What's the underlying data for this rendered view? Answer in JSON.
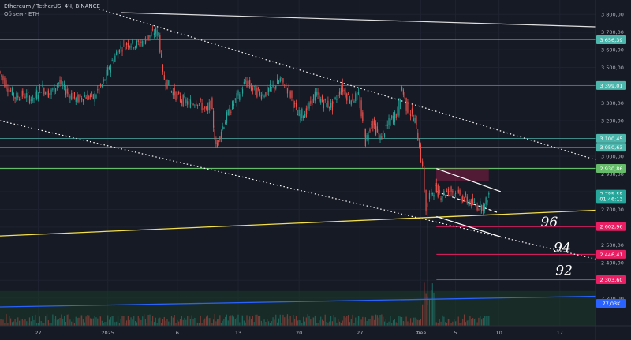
{
  "header": {
    "title": "Ethereum / TetherUS, 4Ч, BINANCE",
    "volume_label": "Объем · ETH"
  },
  "colors": {
    "bg": "#161a25",
    "grid": "#1f2330",
    "axis_text": "#b2b5be",
    "up": "#26a69a",
    "down": "#ef5350",
    "teal_level": "#4db6ac",
    "green_level": "#66bb6a",
    "pink_level": "#e91e63",
    "yellow_line": "#f4e04d",
    "blue_line": "#2962ff",
    "white_line": "#e0e0e0"
  },
  "chart_data": {
    "type": "candlestick",
    "symbol": "ETHUSDT",
    "timeframe": "4Ч",
    "ylim": [
      2150,
      3850
    ],
    "y_ticks": [
      "3 800,00",
      "3 700,00",
      "3 600,00",
      "3 500,00",
      "3 400,00",
      "3 300,00",
      "3 200,00",
      "3 100,00",
      "3 000,00",
      "2 900,00",
      "2 800,00",
      "2 700,00",
      "2 600,00",
      "2 500,00",
      "2 400,00",
      "2 300,00",
      "2 200,00"
    ],
    "x_ticks": [
      "27",
      "2025",
      "6",
      "13",
      "20",
      "27",
      "Фев",
      "5",
      "10",
      "17"
    ],
    "x_tick_pos": [
      27,
      35,
      43,
      50,
      57,
      64,
      71,
      75,
      80,
      87
    ],
    "x_range": [
      22.6,
      91.1
    ],
    "price_labels": [
      {
        "label": "3 656,39",
        "value": 3656.39,
        "color": "#4db6ac"
      },
      {
        "label": "3 399,01",
        "value": 3399.01,
        "color": "#4db6ac"
      },
      {
        "label": "3 100,45",
        "value": 3100.45,
        "color": "#4db6ac"
      },
      {
        "label": "3 050,63",
        "value": 3050.63,
        "color": "#4db6ac"
      },
      {
        "label": "2 930,86",
        "value": 2930.86,
        "color": "#66bb6a"
      },
      {
        "label": "2 785,58",
        "value": 2785.58,
        "color": "#26a69a"
      },
      {
        "label": "01:46:13",
        "value": 2760,
        "color": "#26a69a"
      },
      {
        "label": "2 602,96",
        "value": 2602.96,
        "color": "#e91e63"
      },
      {
        "label": "2 446,41",
        "value": 2446.41,
        "color": "#e91e63"
      },
      {
        "label": "2 303,60",
        "value": 2303.6,
        "color": "#e91e63"
      },
      {
        "label": "77,03K",
        "value": 2170,
        "color": "#2962ff"
      }
    ],
    "annotations": [
      "96",
      "94",
      "92"
    ],
    "price_path": [
      [
        22.6,
        3480
      ],
      [
        23.5,
        3400
      ],
      [
        24.5,
        3330
      ],
      [
        25.5,
        3350
      ],
      [
        26.5,
        3320
      ],
      [
        27.5,
        3390
      ],
      [
        28.5,
        3350
      ],
      [
        29.5,
        3420
      ],
      [
        30.5,
        3360
      ],
      [
        31.5,
        3320
      ],
      [
        32.5,
        3340
      ],
      [
        33.5,
        3330
      ],
      [
        34.5,
        3400
      ],
      [
        35.5,
        3520
      ],
      [
        36.5,
        3610
      ],
      [
        37.5,
        3640
      ],
      [
        38.5,
        3630
      ],
      [
        39.5,
        3660
      ],
      [
        40.5,
        3700
      ],
      [
        41.0,
        3690
      ],
      [
        41.5,
        3450
      ],
      [
        42.5,
        3370
      ],
      [
        43.5,
        3320
      ],
      [
        44.5,
        3300
      ],
      [
        45.5,
        3310
      ],
      [
        46.5,
        3250
      ],
      [
        47.0,
        3300
      ],
      [
        47.6,
        3050
      ],
      [
        48.2,
        3150
      ],
      [
        49.0,
        3240
      ],
      [
        50.0,
        3330
      ],
      [
        51.0,
        3420
      ],
      [
        52.0,
        3370
      ],
      [
        53.0,
        3350
      ],
      [
        54.0,
        3380
      ],
      [
        55.0,
        3430
      ],
      [
        56.0,
        3370
      ],
      [
        57.0,
        3230
      ],
      [
        58.0,
        3250
      ],
      [
        59.0,
        3350
      ],
      [
        60.0,
        3300
      ],
      [
        61.0,
        3280
      ],
      [
        62.0,
        3390
      ],
      [
        63.0,
        3320
      ],
      [
        64.0,
        3340
      ],
      [
        64.8,
        3080
      ],
      [
        65.5,
        3200
      ],
      [
        66.5,
        3100
      ],
      [
        67.5,
        3190
      ],
      [
        68.5,
        3250
      ],
      [
        69.0,
        3390
      ],
      [
        69.5,
        3280
      ],
      [
        70.5,
        3200
      ],
      [
        71.0,
        3060
      ],
      [
        71.4,
        2920
      ],
      [
        71.8,
        2700
      ],
      [
        72.2,
        2780
      ],
      [
        72.8,
        2820
      ],
      [
        73.5,
        2780
      ],
      [
        74.5,
        2810
      ],
      [
        75.5,
        2780
      ],
      [
        76.5,
        2750
      ],
      [
        77.5,
        2720
      ],
      [
        78.5,
        2720
      ],
      [
        79.0,
        2785
      ]
    ],
    "levels": [
      3656.39,
      3399.01,
      3100.45,
      3050.63,
      2930.86,
      2602.96,
      2446.41,
      2303.6
    ],
    "volume_peak_label": "77,03K"
  }
}
